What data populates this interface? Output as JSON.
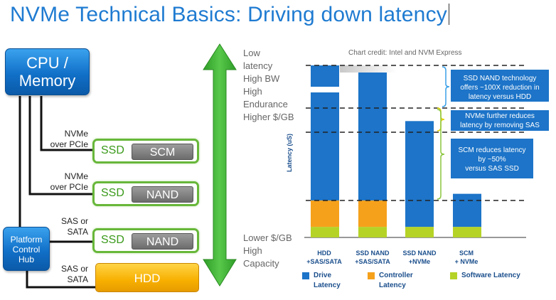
{
  "title": "NVMe Technical Basics: Driving down latency",
  "diagram": {
    "cpu_label_line1": "CPU /",
    "cpu_label_line2": "Memory",
    "pch_line1": "Platform",
    "pch_line2": "Control",
    "pch_line3": "Hub",
    "devices": [
      {
        "ssd": "SSD",
        "media": "SCM",
        "link_line1": "NVMe",
        "link_line2": "over PCIe"
      },
      {
        "ssd": "SSD",
        "media": "NAND",
        "link_line1": "NVMe",
        "link_line2": "over PCIe"
      },
      {
        "ssd": "SSD",
        "media": "NAND",
        "link_line1": "SAS or",
        "link_line2": "SATA"
      }
    ],
    "hdd": {
      "label": "HDD",
      "link_line1": "SAS or",
      "link_line2": "SATA"
    },
    "top_text": [
      "Low",
      "latency",
      "High BW",
      "High",
      "Endurance",
      "Higher $/GB"
    ],
    "bottom_text": [
      "Lower  $/GB",
      "High",
      "Capacity"
    ],
    "arrow_color": "#3cb034"
  },
  "chart_credit": "Chart credit: Intel and NVM Express",
  "annotations": {
    "a1": "SSD NAND technology offers ~100X reduction in latency versus HDD",
    "a1_line1": "SSD NAND technology",
    "a1_line2": "offers ~100X reduction in",
    "a1_line3": "latency versus HDD",
    "a2_line1": "NVMe further reduces",
    "a2_line2": "latency by removing SAS",
    "a3_line1": "SCM reduces latency",
    "a3_line2": "by ~50%",
    "a3_line3": "versus SAS SSD"
  },
  "chart_data": {
    "type": "bar",
    "stacked": true,
    "ylabel": "Latency (uS)",
    "categories": [
      "HDD +SAS/SATA",
      "SSD NAND +SAS/SATA",
      "SSD NAND +NVMe",
      "SCM + NVMe"
    ],
    "category_lines": [
      [
        "HDD",
        "+SAS/SATA"
      ],
      [
        "SSD NAND",
        "+SAS/SATA"
      ],
      [
        "SSD NAND",
        "+NVMe"
      ],
      [
        "SCM",
        "+ NVMe"
      ]
    ],
    "series": [
      {
        "name": "Software Latency",
        "color": "#b5d327",
        "values": [
          0.8,
          0.8,
          0.8,
          0.8
        ]
      },
      {
        "name": "Controller Latency",
        "color": "#f5a11c",
        "values": [
          2.0,
          2.0,
          0,
          0
        ]
      },
      {
        "name": "Drive Latency",
        "color": "#1d74c8",
        "values": [
          100,
          10.5,
          8.0,
          2.5
        ]
      }
    ],
    "legend_lines": [
      [
        "Drive",
        "Latency"
      ],
      [
        "Controller",
        "Latency"
      ],
      [
        "Software Latency"
      ]
    ],
    "legend_colors": [
      "#1d74c8",
      "#f5a11c",
      "#b5d327"
    ],
    "axis_break": true
  }
}
